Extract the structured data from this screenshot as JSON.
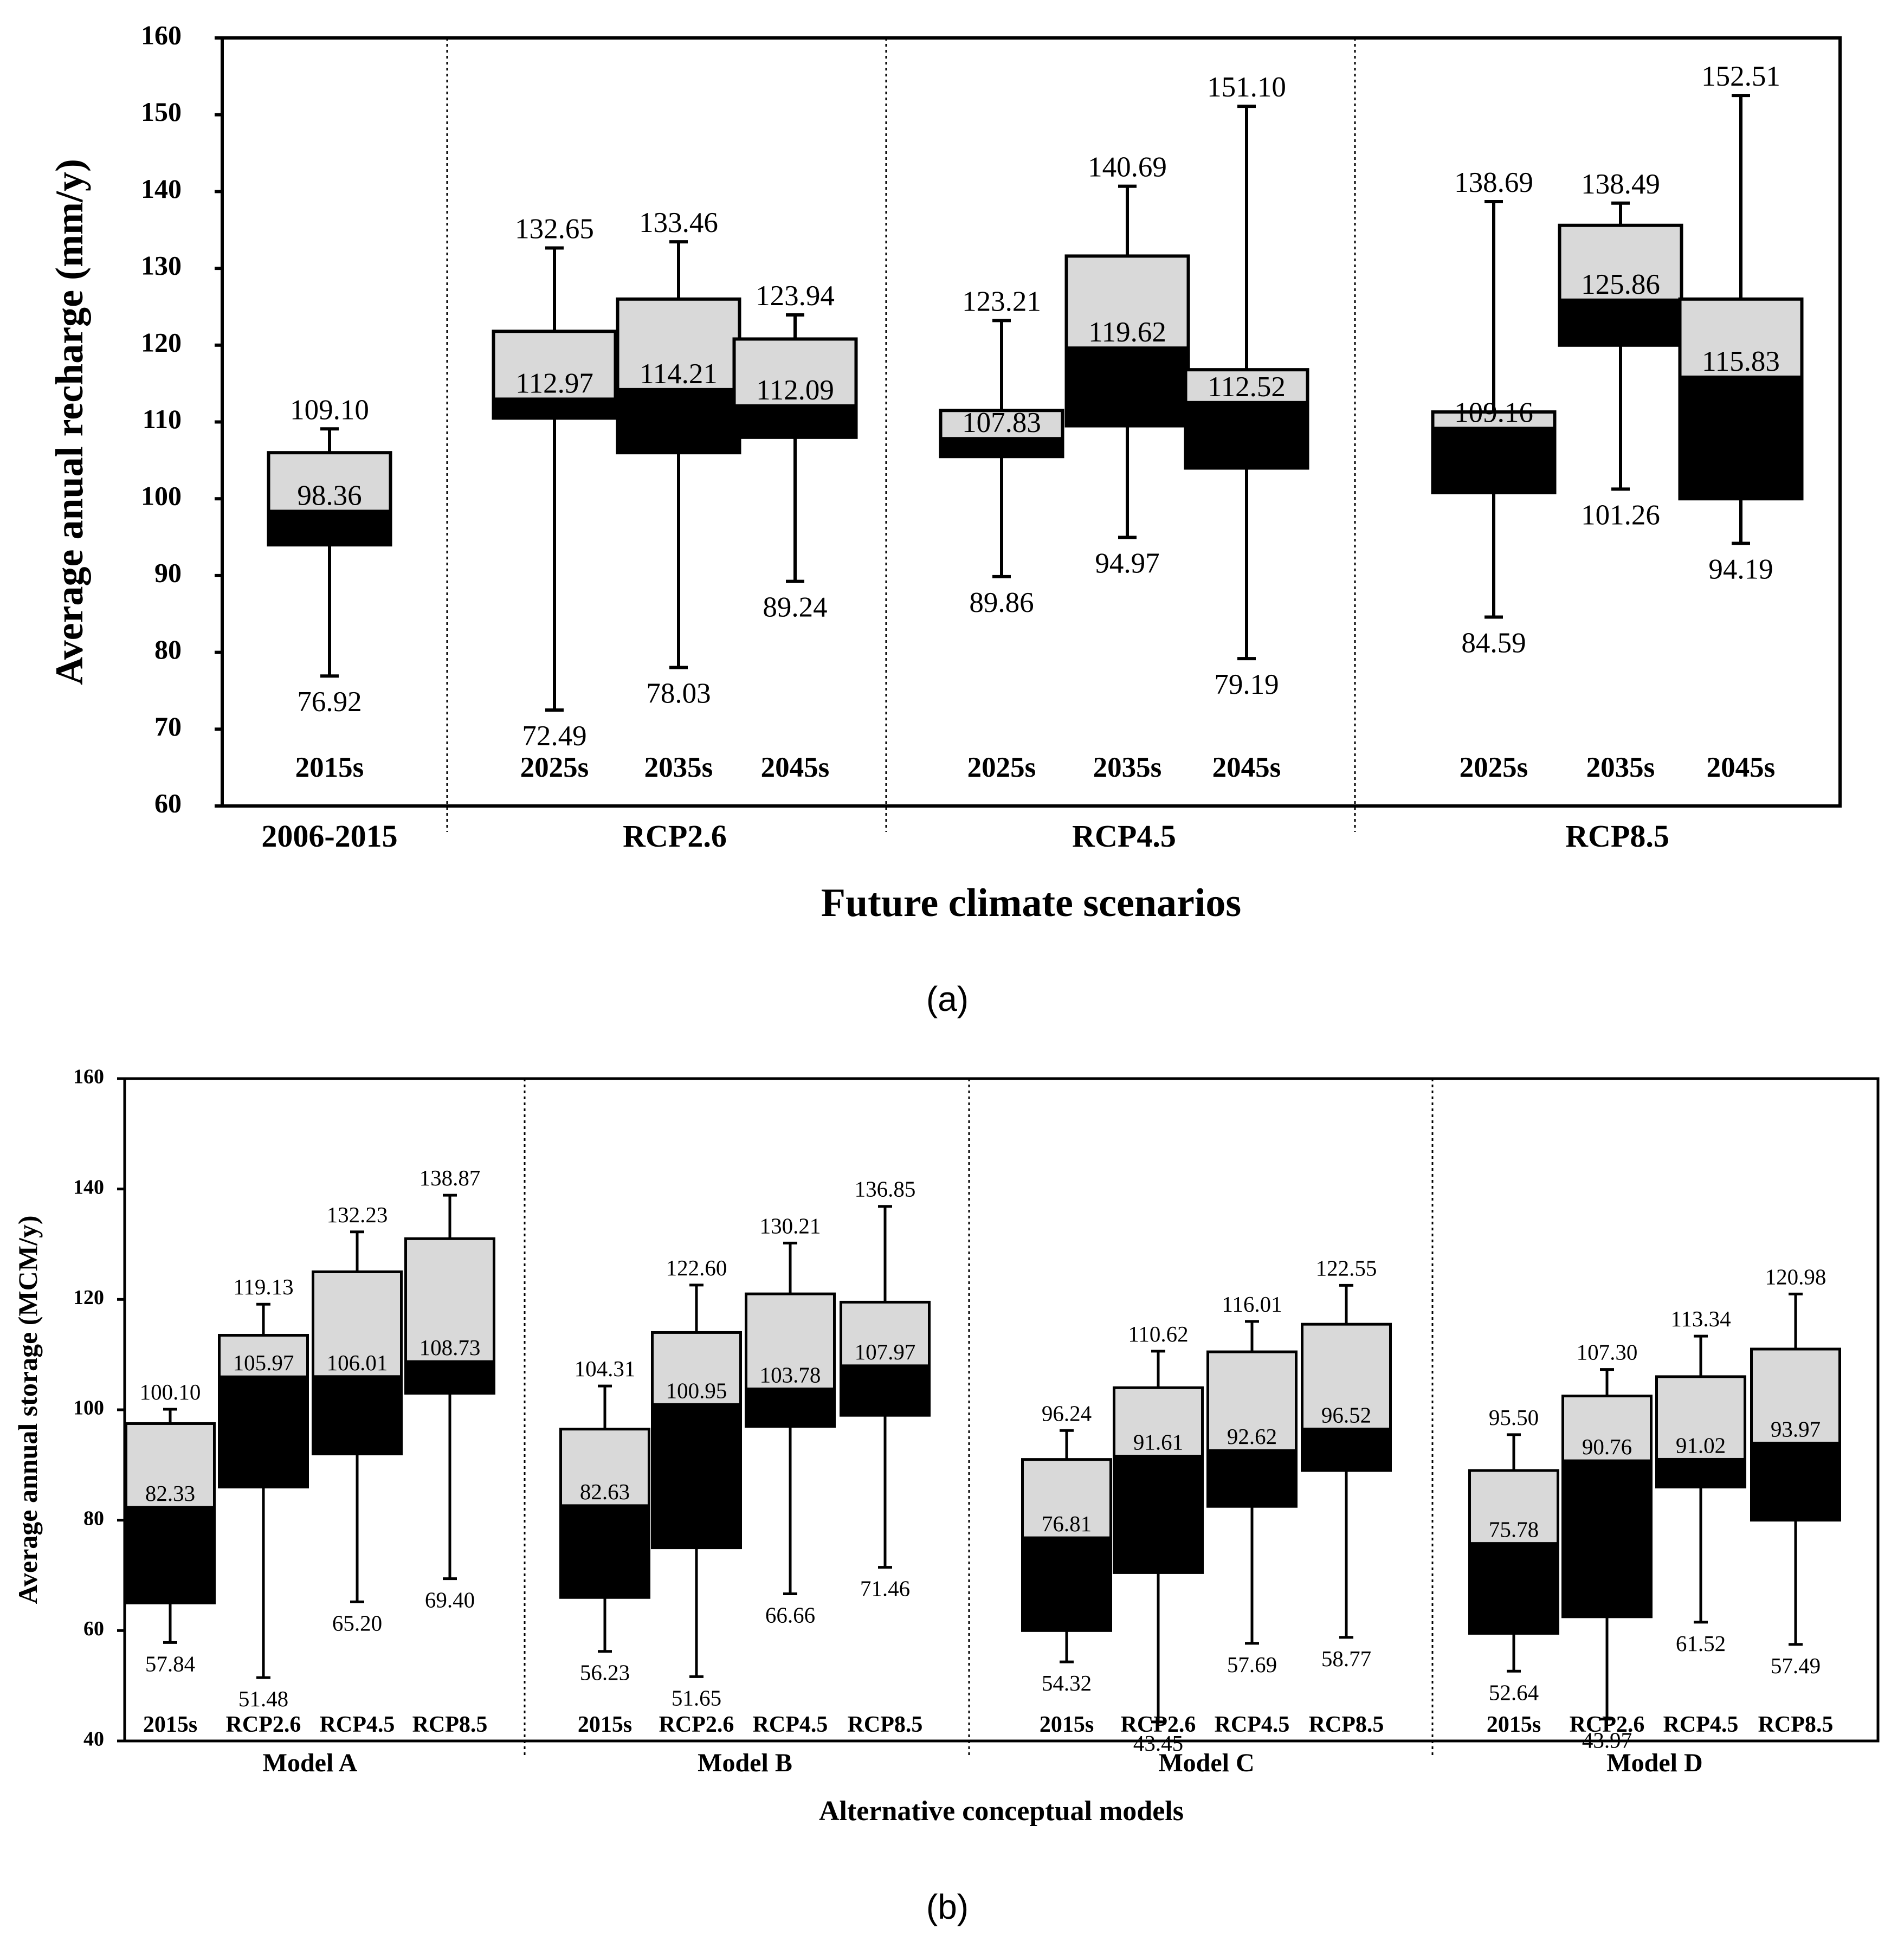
{
  "colors": {
    "upper_box": "#d9d9d9",
    "lower_box": "#000000",
    "frame": "#000000"
  },
  "chart_data": [
    {
      "id": "a",
      "type": "boxplot",
      "caption": "(a)",
      "ylabel": "Average anual recharge (mm/y)",
      "xlabel": "Future climate scenarios",
      "ylim": [
        60,
        160
      ],
      "yticks": [
        60,
        70,
        80,
        90,
        100,
        110,
        120,
        130,
        140,
        150,
        160
      ],
      "groups": [
        {
          "label": "2006-2015",
          "boxes": [
            {
              "label": "2015s",
              "min": 76.92,
              "q1": 94,
              "median": 98.36,
              "q3": 106,
              "max": 109.1,
              "min_label": "76.92",
              "median_label": "98.36",
              "max_label": "109.10"
            }
          ]
        },
        {
          "label": "RCP2.6",
          "boxes": [
            {
              "label": "2025s",
              "min": 72.49,
              "q1": 110.5,
              "median": 112.97,
              "q3": 121.8,
              "max": 132.65,
              "min_label": "72.49",
              "median_label": "112.97",
              "max_label": "132.65"
            },
            {
              "label": "2035s",
              "min": 78.03,
              "q1": 106,
              "median": 114.21,
              "q3": 126,
              "max": 133.46,
              "min_label": "78.03",
              "median_label": "114.21",
              "max_label": "133.46"
            },
            {
              "label": "2045s",
              "min": 89.24,
              "q1": 108,
              "median": 112.09,
              "q3": 120.8,
              "max": 123.94,
              "min_label": "89.24",
              "median_label": "112.09",
              "max_label": "123.94"
            }
          ]
        },
        {
          "label": "RCP4.5",
          "boxes": [
            {
              "label": "2025s",
              "min": 89.86,
              "q1": 105.5,
              "median": 107.83,
              "q3": 111.5,
              "max": 123.21,
              "min_label": "89.86",
              "median_label": "107.83",
              "max_label": "123.21"
            },
            {
              "label": "2035s",
              "min": 94.97,
              "q1": 109.5,
              "median": 119.62,
              "q3": 131.6,
              "max": 140.69,
              "min_label": "94.97",
              "median_label": "119.62",
              "max_label": "140.69"
            },
            {
              "label": "2045s",
              "min": 79.19,
              "q1": 104,
              "median": 112.52,
              "q3": 116.8,
              "max": 151.1,
              "min_label": "79.19",
              "median_label": "112.52",
              "max_label": "151.10"
            }
          ]
        },
        {
          "label": "RCP8.5",
          "boxes": [
            {
              "label": "2025s",
              "min": 84.59,
              "q1": 100.8,
              "median": 109.16,
              "q3": 111.3,
              "max": 138.69,
              "min_label": "84.59",
              "median_label": "109.16",
              "max_label": "138.69"
            },
            {
              "label": "2035s",
              "min": 101.26,
              "q1": 120,
              "median": 125.86,
              "q3": 135.6,
              "max": 138.49,
              "min_label": "101.26",
              "median_label": "125.86",
              "max_label": "138.49"
            },
            {
              "label": "2045s",
              "min": 94.19,
              "q1": 100,
              "median": 115.83,
              "q3": 126,
              "max": 152.51,
              "min_label": "94.19",
              "median_label": "115.83",
              "max_label": "152.51"
            }
          ]
        }
      ]
    },
    {
      "id": "b",
      "type": "boxplot",
      "caption": "(b)",
      "ylabel": "Average annual storage (MCM/y)",
      "xlabel": "Alternative conceptual models",
      "ylim": [
        40,
        160
      ],
      "yticks": [
        40,
        60,
        80,
        100,
        120,
        140,
        160
      ],
      "groups": [
        {
          "label": "Model A",
          "boxes": [
            {
              "label": "2015s",
              "min": 57.84,
              "q1": 65,
              "median": 82.33,
              "q3": 97.5,
              "max": 100.1,
              "min_label": "57.84",
              "median_label": "82.33",
              "max_label": "100.10"
            },
            {
              "label": "RCP2.6",
              "min": 51.48,
              "q1": 86,
              "median": 105.97,
              "q3": 113.5,
              "max": 119.13,
              "min_label": "51.48",
              "median_label": "105.97",
              "max_label": "119.13"
            },
            {
              "label": "RCP4.5",
              "min": 65.2,
              "q1": 92,
              "median": 106.01,
              "q3": 125,
              "max": 132.23,
              "min_label": "65.20",
              "median_label": "106.01",
              "max_label": "132.23"
            },
            {
              "label": "RCP8.5",
              "min": 69.4,
              "q1": 103,
              "median": 108.73,
              "q3": 131,
              "max": 138.87,
              "min_label": "69.40",
              "median_label": "108.73",
              "max_label": "138.87"
            }
          ]
        },
        {
          "label": "Model B",
          "boxes": [
            {
              "label": "2015s",
              "min": 56.23,
              "q1": 66,
              "median": 82.63,
              "q3": 96.5,
              "max": 104.31,
              "min_label": "56.23",
              "median_label": "82.63",
              "max_label": "104.31"
            },
            {
              "label": "RCP2.6",
              "min": 51.65,
              "q1": 75,
              "median": 100.95,
              "q3": 114,
              "max": 122.6,
              "min_label": "51.65",
              "median_label": "100.95",
              "max_label": "122.60"
            },
            {
              "label": "RCP4.5",
              "min": 66.66,
              "q1": 97,
              "median": 103.78,
              "q3": 121,
              "max": 130.21,
              "min_label": "66.66",
              "median_label": "103.78",
              "max_label": "130.21"
            },
            {
              "label": "RCP8.5",
              "min": 71.46,
              "q1": 99,
              "median": 107.97,
              "q3": 119.5,
              "max": 136.85,
              "min_label": "71.46",
              "median_label": "107.97",
              "max_label": "136.85"
            }
          ]
        },
        {
          "label": "Model C",
          "boxes": [
            {
              "label": "2015s",
              "min": 54.32,
              "q1": 60,
              "median": 76.81,
              "q3": 91,
              "max": 96.24,
              "min_label": "54.32",
              "median_label": "76.81",
              "max_label": "96.24"
            },
            {
              "label": "RCP2.6",
              "min": 43.45,
              "q1": 70.5,
              "median": 91.61,
              "q3": 104,
              "max": 110.62,
              "min_label": "43.45",
              "median_label": "91.61",
              "max_label": "110.62"
            },
            {
              "label": "RCP4.5",
              "min": 57.69,
              "q1": 82.5,
              "median": 92.62,
              "q3": 110.5,
              "max": 116.01,
              "min_label": "57.69",
              "median_label": "92.62",
              "max_label": "116.01"
            },
            {
              "label": "RCP8.5",
              "min": 58.77,
              "q1": 89,
              "median": 96.52,
              "q3": 115.5,
              "max": 122.55,
              "min_label": "58.77",
              "median_label": "96.52",
              "max_label": "122.55"
            }
          ]
        },
        {
          "label": "Model D",
          "boxes": [
            {
              "label": "2015s",
              "min": 52.64,
              "q1": 59.5,
              "median": 75.78,
              "q3": 89,
              "max": 95.5,
              "min_label": "52.64",
              "median_label": "75.78",
              "max_label": "95.50"
            },
            {
              "label": "RCP2.6",
              "min": 43.97,
              "q1": 62.5,
              "median": 90.76,
              "q3": 102.5,
              "max": 107.3,
              "min_label": "43.97",
              "median_label": "90.76",
              "max_label": "107.30"
            },
            {
              "label": "RCP4.5",
              "min": 61.52,
              "q1": 86,
              "median": 91.02,
              "q3": 106,
              "max": 113.34,
              "min_label": "61.52",
              "median_label": "91.02",
              "max_label": "113.34"
            },
            {
              "label": "RCP8.5",
              "min": 57.49,
              "q1": 80,
              "median": 93.97,
              "q3": 111,
              "max": 120.98,
              "min_label": "57.49",
              "median_label": "93.97",
              "max_label": "120.98"
            }
          ]
        }
      ]
    }
  ]
}
